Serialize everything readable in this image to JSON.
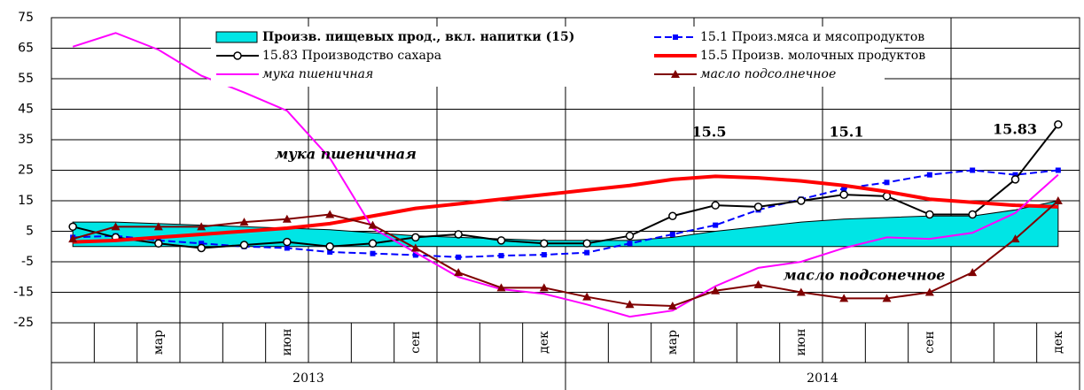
{
  "chart_data": {
    "type": "line",
    "categories": [
      null,
      null,
      "мар",
      null,
      null,
      "июн",
      null,
      null,
      "сен",
      null,
      null,
      "дек",
      null,
      null,
      "мар",
      null,
      null,
      "июн",
      null,
      null,
      "сен",
      null,
      null,
      "дек"
    ],
    "years": [
      "2013",
      "2014"
    ],
    "ylim": [
      -25,
      75
    ],
    "yticks": [
      -25,
      -15,
      -5,
      5,
      15,
      25,
      35,
      45,
      55,
      65,
      75
    ],
    "grid": true,
    "series": [
      {
        "name": "Произв. пищевых прод., вкл. напитки (15)",
        "kind": "area",
        "color": "#00e5e5",
        "values": [
          8,
          8,
          7.5,
          7,
          6.5,
          6,
          5.5,
          4.5,
          3.5,
          3,
          2.5,
          2,
          2,
          2,
          3,
          5,
          6.5,
          8,
          9,
          9.5,
          10,
          10,
          12,
          15
        ]
      },
      {
        "name": "15.1 Произ.мяса и мясопродуктов",
        "kind": "line",
        "color": "#0000ff",
        "dash": true,
        "marker": "square",
        "values": [
          3,
          3.5,
          2,
          1,
          0,
          -0.5,
          -1.8,
          -2.3,
          -2.8,
          -3.5,
          -3,
          -2.7,
          -2,
          1,
          4,
          7,
          12,
          15.5,
          19,
          21,
          23.5,
          25,
          23.5,
          25
        ]
      },
      {
        "name": "15.83 Производство сахара",
        "kind": "line",
        "color": "#000000",
        "marker": "circle",
        "values": [
          6.5,
          3,
          1,
          -0.5,
          0.5,
          1.5,
          0,
          1,
          3,
          4,
          2,
          1,
          1,
          3.5,
          10,
          13.5,
          13,
          15,
          17,
          16.5,
          10.5,
          10.5,
          22,
          40
        ]
      },
      {
        "name": "15.5 Произв. молочных продуктов",
        "kind": "line",
        "color": "#ff0000",
        "width": 4,
        "values": [
          1.5,
          2,
          3,
          4,
          5,
          6,
          7.5,
          10,
          12.5,
          14,
          15.5,
          17,
          18.5,
          20,
          22,
          23,
          22.5,
          21.5,
          20,
          18,
          15.5,
          14.5,
          13.5,
          13
        ]
      },
      {
        "name": "мука пшеничная",
        "kind": "line",
        "color": "#ff00ff",
        "italic": true,
        "values": [
          65.5,
          70,
          64.5,
          56,
          50.5,
          44.5,
          29,
          6,
          -2,
          -10,
          -14,
          -15.5,
          -19,
          -23,
          -21,
          -13,
          -7,
          -5,
          -0.5,
          3,
          2.5,
          4.5,
          11,
          23.5
        ]
      },
      {
        "name": "масло подсолнечное",
        "kind": "line",
        "color": "#7f0000",
        "marker": "triangle",
        "italic": true,
        "values": [
          2.5,
          6.5,
          6.5,
          6.5,
          8,
          9,
          10.5,
          7,
          -0.5,
          -8.5,
          -13.5,
          -13.5,
          -16.5,
          -19,
          -19.5,
          -14.5,
          -12.5,
          -15,
          -17,
          -17,
          -15,
          -8.5,
          2.5,
          15
        ]
      }
    ],
    "annotations": [
      {
        "text": "мука пшеничная",
        "color": "#ff00ff",
        "italic": true
      },
      {
        "text": "15.5",
        "color": "#ff0000"
      },
      {
        "text": "15.1",
        "color": "#0033cc"
      },
      {
        "text": "15.83",
        "color": "#1f1f7a"
      },
      {
        "text": "масло подсонечное",
        "color": "#7f0000",
        "italic": true
      }
    ]
  }
}
